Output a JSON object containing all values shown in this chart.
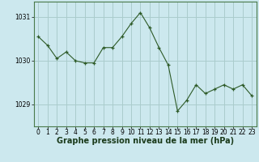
{
  "x": [
    0,
    1,
    2,
    3,
    4,
    5,
    6,
    7,
    8,
    9,
    10,
    11,
    12,
    13,
    14,
    15,
    16,
    17,
    18,
    19,
    20,
    21,
    22,
    23
  ],
  "y": [
    1030.55,
    1030.35,
    1030.05,
    1030.2,
    1030.0,
    1029.95,
    1029.95,
    1030.3,
    1030.3,
    1030.55,
    1030.85,
    1031.1,
    1030.75,
    1030.3,
    1029.9,
    1028.85,
    1029.1,
    1029.45,
    1029.25,
    1029.35,
    1029.45,
    1029.35,
    1029.45,
    1029.2
  ],
  "line_color": "#2d5a27",
  "marker_color": "#2d5a27",
  "bg_color": "#cce8ee",
  "grid_color": "#aacccc",
  "xlabel": "Graphe pression niveau de la mer (hPa)",
  "xlabel_color": "#1a3a1a",
  "yticks": [
    1029,
    1030,
    1031
  ],
  "xticks": [
    0,
    1,
    2,
    3,
    4,
    5,
    6,
    7,
    8,
    9,
    10,
    11,
    12,
    13,
    14,
    15,
    16,
    17,
    18,
    19,
    20,
    21,
    22,
    23
  ],
  "ylim": [
    1028.5,
    1031.35
  ],
  "xlim": [
    -0.5,
    23.5
  ],
  "tick_fontsize": 5.5,
  "xlabel_fontsize": 7.0,
  "border_color": "#4a7a4a"
}
